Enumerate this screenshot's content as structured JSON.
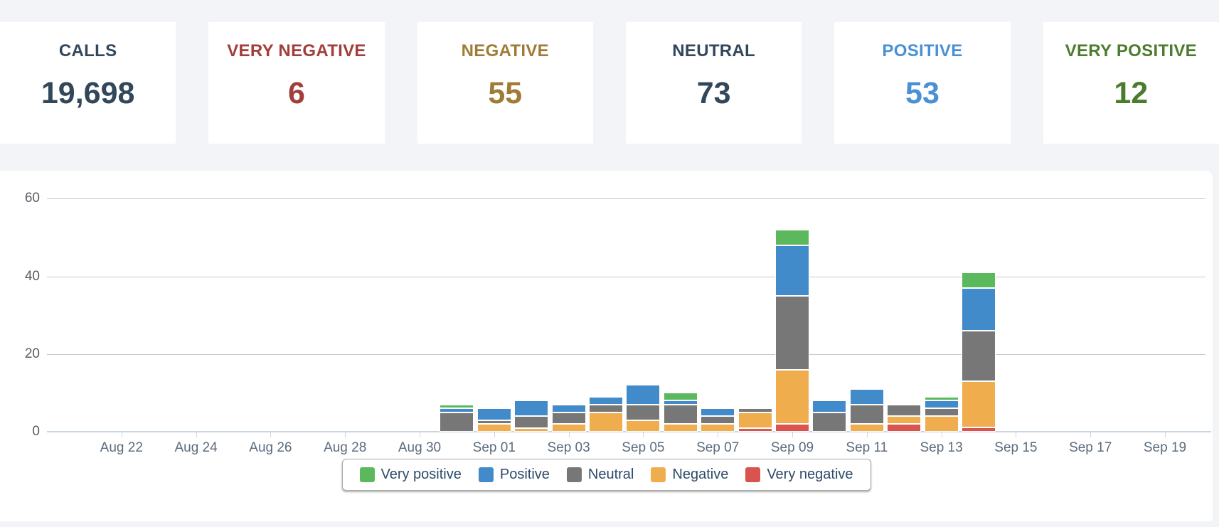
{
  "cards": [
    {
      "label": "CALLS",
      "value": "19,698",
      "color": "#33475b"
    },
    {
      "label": "VERY NEGATIVE",
      "value": "6",
      "color": "#a23e39"
    },
    {
      "label": "NEGATIVE",
      "value": "55",
      "color": "#9e7c35"
    },
    {
      "label": "NEUTRAL",
      "value": "73",
      "color": "#33475b"
    },
    {
      "label": "POSITIVE",
      "value": "53",
      "color": "#4a90d5"
    },
    {
      "label": "VERY POSITIVE",
      "value": "12",
      "color": "#4b7c2e"
    }
  ],
  "chart_data": {
    "type": "bar",
    "stacked": true,
    "title": "",
    "xlabel": "",
    "ylabel": "",
    "ylim": [
      0,
      67
    ],
    "y_ticks": [
      0,
      20,
      40,
      60
    ],
    "grid": "horizontal",
    "legend_position": "bottom-center",
    "axis_start_date": "Aug 20",
    "x_ticks": [
      {
        "label": "Aug 22",
        "day_index": 2
      },
      {
        "label": "Aug 24",
        "day_index": 4
      },
      {
        "label": "Aug 26",
        "day_index": 6
      },
      {
        "label": "Aug 28",
        "day_index": 8
      },
      {
        "label": "Aug 30",
        "day_index": 10
      },
      {
        "label": "Sep 01",
        "day_index": 12
      },
      {
        "label": "Sep 03",
        "day_index": 14
      },
      {
        "label": "Sep 05",
        "day_index": 16
      },
      {
        "label": "Sep 07",
        "day_index": 18
      },
      {
        "label": "Sep 09",
        "day_index": 20
      },
      {
        "label": "Sep 11",
        "day_index": 22
      },
      {
        "label": "Sep 13",
        "day_index": 24
      },
      {
        "label": "Sep 15",
        "day_index": 26
      },
      {
        "label": "Sep 17",
        "day_index": 28
      },
      {
        "label": "Sep 19",
        "day_index": 30
      }
    ],
    "series_order_bottom_to_top": [
      "very_negative",
      "negative",
      "neutral",
      "positive",
      "very_positive"
    ],
    "colors": {
      "very_positive": "#5cb85c",
      "positive": "#428bca",
      "neutral": "#777777",
      "negative": "#f0ad4e",
      "very_negative": "#d9534f"
    },
    "legend": [
      {
        "label": "Very positive",
        "key": "very_positive"
      },
      {
        "label": "Positive",
        "key": "positive"
      },
      {
        "label": "Neutral",
        "key": "neutral"
      },
      {
        "label": "Negative",
        "key": "negative"
      },
      {
        "label": "Very negative",
        "key": "very_negative"
      }
    ],
    "bars": [
      {
        "date": "Aug 31",
        "day_index": 11,
        "very_negative": 0,
        "negative": 0,
        "neutral": 5,
        "positive": 1,
        "very_positive": 1
      },
      {
        "date": "Sep 01",
        "day_index": 12,
        "very_negative": 0,
        "negative": 2,
        "neutral": 1,
        "positive": 3,
        "very_positive": 0
      },
      {
        "date": "Sep 02",
        "day_index": 13,
        "very_negative": 0,
        "negative": 1,
        "neutral": 3,
        "positive": 4,
        "very_positive": 0
      },
      {
        "date": "Sep 03",
        "day_index": 14,
        "very_negative": 0,
        "negative": 2,
        "neutral": 3,
        "positive": 2,
        "very_positive": 0
      },
      {
        "date": "Sep 04",
        "day_index": 15,
        "very_negative": 0,
        "negative": 5,
        "neutral": 2,
        "positive": 2,
        "very_positive": 0
      },
      {
        "date": "Sep 05",
        "day_index": 16,
        "very_negative": 0,
        "negative": 3,
        "neutral": 4,
        "positive": 5,
        "very_positive": 0
      },
      {
        "date": "Sep 06",
        "day_index": 17,
        "very_negative": 0,
        "negative": 2,
        "neutral": 5,
        "positive": 1,
        "very_positive": 2
      },
      {
        "date": "Sep 07",
        "day_index": 18,
        "very_negative": 0,
        "negative": 2,
        "neutral": 2,
        "positive": 2,
        "very_positive": 0
      },
      {
        "date": "Sep 08",
        "day_index": 19,
        "very_negative": 1,
        "negative": 4,
        "neutral": 1,
        "positive": 0,
        "very_positive": 0
      },
      {
        "date": "Sep 09",
        "day_index": 20,
        "very_negative": 2,
        "negative": 14,
        "neutral": 19,
        "positive": 13,
        "very_positive": 4
      },
      {
        "date": "Sep 10",
        "day_index": 21,
        "very_negative": 0,
        "negative": 0,
        "neutral": 5,
        "positive": 3,
        "very_positive": 0
      },
      {
        "date": "Sep 11",
        "day_index": 22,
        "very_negative": 0,
        "negative": 2,
        "neutral": 5,
        "positive": 4,
        "very_positive": 0
      },
      {
        "date": "Sep 12",
        "day_index": 23,
        "very_negative": 2,
        "negative": 2,
        "neutral": 3,
        "positive": 0,
        "very_positive": 0
      },
      {
        "date": "Sep 13",
        "day_index": 24,
        "very_negative": 0,
        "negative": 4,
        "neutral": 2,
        "positive": 2,
        "very_positive": 1
      },
      {
        "date": "Sep 14",
        "day_index": 25,
        "very_negative": 1,
        "negative": 12,
        "neutral": 13,
        "positive": 11,
        "very_positive": 4
      }
    ]
  }
}
